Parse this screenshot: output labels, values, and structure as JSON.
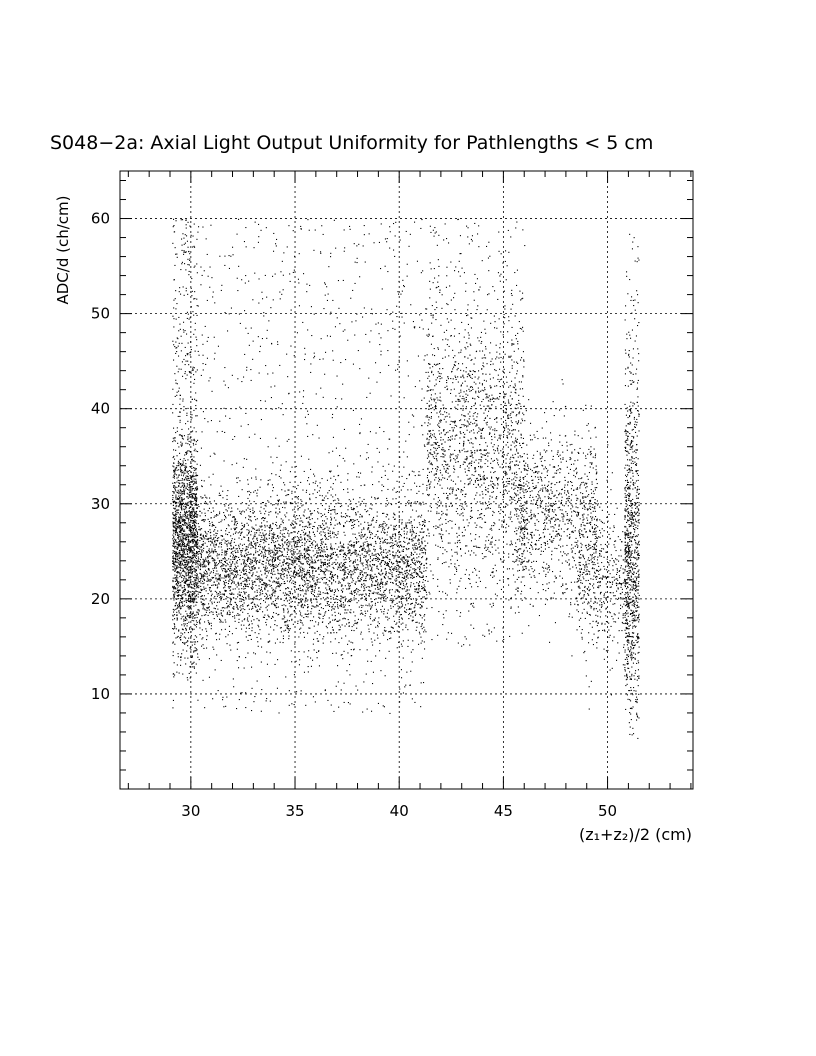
{
  "chart_data": {
    "type": "scatter",
    "title": "S048−2a: Axial Light Output Uniformity for Pathlengths < 5 cm",
    "xlabel": "(z₁+z₂)/2 (cm)",
    "ylabel": "ADC/d (ch/cm)",
    "xlim": [
      26.6,
      54.1
    ],
    "ylim": [
      0,
      65
    ],
    "x_ticks": [
      30,
      35,
      40,
      45,
      50
    ],
    "y_ticks": [
      10,
      20,
      30,
      40,
      50,
      60
    ],
    "grid": true,
    "marker_color": "#000000",
    "clusters": [
      {
        "x_range": [
          29.1,
          30.3
        ],
        "y_center": 26,
        "y_spread": 5,
        "count": 1500
      },
      {
        "x_range": [
          29.1,
          30.3
        ],
        "y_range": [
          12,
          60
        ],
        "count": 450
      },
      {
        "x_range": [
          30.3,
          41.3
        ],
        "y_center": 23.5,
        "y_spread": 3.8,
        "count": 4200
      },
      {
        "x_range": [
          30.3,
          41.3
        ],
        "y_range": [
          8,
          60
        ],
        "count": 900
      },
      {
        "x_range": [
          41.3,
          46.0
        ],
        "y_center": 36,
        "y_spread": 7,
        "count": 1500
      },
      {
        "x_range": [
          41.3,
          46.0
        ],
        "y_range": [
          15,
          60
        ],
        "count": 350
      },
      {
        "x_range": [
          45.5,
          49.5
        ],
        "y_center": 29,
        "y_spread": 4.5,
        "count": 1000
      },
      {
        "x_range": [
          48.5,
          51.0
        ],
        "y_center": 22,
        "y_spread": 4,
        "count": 500
      },
      {
        "x_range": [
          50.8,
          51.5
        ],
        "y_center": 24,
        "y_spread": 9,
        "count": 800
      },
      {
        "x_range": [
          50.8,
          51.5
        ],
        "y_range": [
          9,
          59
        ],
        "count": 150
      }
    ]
  }
}
